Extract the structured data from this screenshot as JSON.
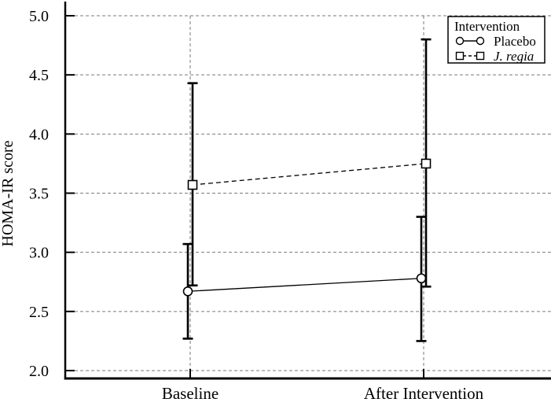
{
  "figure": {
    "background": "#ffffff"
  },
  "chart_data": {
    "type": "line",
    "title": "",
    "xlabel": "",
    "ylabel": "HOMA-IR score",
    "categories": [
      "Baseline",
      "After Intervention"
    ],
    "series": [
      {
        "name": "Placebo",
        "italic": false,
        "marker": "circle",
        "line_style": "solid",
        "values": [
          2.67,
          2.78
        ],
        "error_low": [
          2.27,
          2.25
        ],
        "error_high": [
          3.07,
          3.3
        ]
      },
      {
        "name": "J. regia",
        "italic": true,
        "marker": "square",
        "line_style": "dashed",
        "values": [
          3.57,
          3.75
        ],
        "error_low": [
          2.72,
          2.71
        ],
        "error_high": [
          4.43,
          4.8
        ]
      }
    ],
    "ylim": [
      2.0,
      5.0
    ],
    "yticks": [
      "2.0",
      "2.5",
      "3.0",
      "3.5",
      "4.0",
      "4.5",
      "5.0"
    ],
    "grid": {
      "horizontal": true,
      "vertical": true,
      "style": "dashed"
    },
    "legend": {
      "title": "Intervention",
      "position": "top-right"
    }
  },
  "colors": {
    "axis": "#000000",
    "grid": "#7a7a7a",
    "marker_fill": "#ffffff",
    "text": "#000000",
    "legend_border": "#000000",
    "legend_fill": "#ffffff"
  }
}
